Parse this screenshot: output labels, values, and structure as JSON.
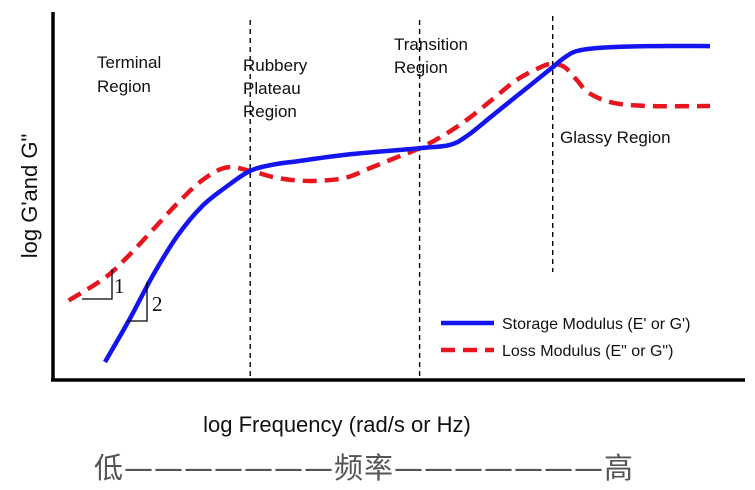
{
  "chart_data": {
    "type": "line",
    "title": "",
    "xlabel": "log Frequency (rad/s or Hz)",
    "ylabel": "log G'and G\"",
    "xlim": [
      0,
      100
    ],
    "ylim": [
      0,
      100
    ],
    "grid": false,
    "legend_position": "bottom-right",
    "series": [
      {
        "name": "Storage Modulus (E' or G')",
        "color": "#1414f0",
        "style": "solid",
        "points": [
          [
            0,
            0
          ],
          [
            4,
            13
          ],
          [
            8,
            27
          ],
          [
            12,
            39
          ],
          [
            16,
            48
          ],
          [
            20,
            54
          ],
          [
            24,
            59
          ],
          [
            28,
            61
          ],
          [
            32,
            62
          ],
          [
            40,
            64
          ],
          [
            52,
            66
          ],
          [
            57,
            67
          ],
          [
            60,
            70
          ],
          [
            64,
            76
          ],
          [
            68,
            82
          ],
          [
            72,
            88
          ],
          [
            74,
            91
          ],
          [
            76,
            94
          ],
          [
            78,
            96
          ],
          [
            82,
            97
          ],
          [
            90,
            97.5
          ],
          [
            100,
            97.5
          ]
        ]
      },
      {
        "name": "Loss Modulus (E\" or G\")",
        "color": "#e8141e",
        "style": "dashed",
        "points": [
          [
            -6,
            19
          ],
          [
            0,
            26
          ],
          [
            4,
            33
          ],
          [
            8,
            41
          ],
          [
            12,
            49
          ],
          [
            16,
            56
          ],
          [
            20,
            60
          ],
          [
            24,
            59
          ],
          [
            28,
            57
          ],
          [
            32,
            56
          ],
          [
            36,
            56
          ],
          [
            40,
            57
          ],
          [
            44,
            60
          ],
          [
            48,
            63
          ],
          [
            52,
            66
          ],
          [
            56,
            70
          ],
          [
            60,
            75
          ],
          [
            64,
            81
          ],
          [
            68,
            87
          ],
          [
            72,
            91
          ],
          [
            74,
            92
          ],
          [
            76,
            91
          ],
          [
            78,
            87
          ],
          [
            80,
            83
          ],
          [
            84,
            80
          ],
          [
            90,
            79
          ],
          [
            100,
            79
          ]
        ]
      }
    ],
    "region_dividers": [
      24,
      52,
      74
    ],
    "regions": [
      {
        "lines": [
          "Terminal",
          "Region"
        ]
      },
      {
        "lines": [
          "Rubbery",
          "Plateau",
          "Region"
        ]
      },
      {
        "lines": [
          "Transition",
          "Region"
        ]
      },
      {
        "lines": [
          "Glassy Region"
        ]
      }
    ],
    "slope_annotations": [
      "1",
      "2"
    ]
  },
  "frequency_scale": {
    "low": "低",
    "middle": "频率",
    "high": "高",
    "dash": "—"
  }
}
